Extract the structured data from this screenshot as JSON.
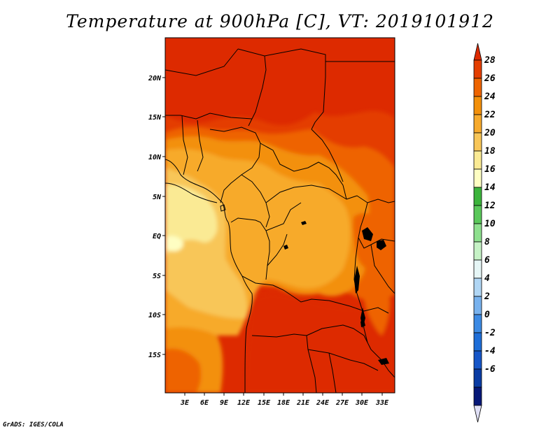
{
  "title": "Temperature at 900hPa [C], VT: 2019101912",
  "credit": "GrADS: IGES/COLA",
  "map": {
    "region": "Central Africa",
    "lon_labels": [
      "3E",
      "6E",
      "9E",
      "12E",
      "15E",
      "18E",
      "21E",
      "24E",
      "27E",
      "30E",
      "33E"
    ],
    "lat_labels": [
      "20N",
      "15N",
      "10N",
      "5N",
      "EQ",
      "5S",
      "10S",
      "15S"
    ]
  },
  "legend": {
    "labels": [
      "28",
      "26",
      "24",
      "22",
      "20",
      "18",
      "16",
      "14",
      "12",
      "10",
      "8",
      "6",
      "4",
      "2",
      "0",
      "-2",
      "-4",
      "-6"
    ],
    "colors": [
      "#dd2a00",
      "#e43e00",
      "#ee6400",
      "#f3900a",
      "#f7aa2c",
      "#f8c658",
      "#faea94",
      "#fefec2",
      "#3cb43c",
      "#5ac85a",
      "#8ee08e",
      "#c6f2c6",
      "#e6f6f6",
      "#b0d6f4",
      "#78b2ee",
      "#3c8ae4",
      "#1e6ed8",
      "#1656c8",
      "#0a3ca4",
      "#061878",
      "#e0e0f6"
    ]
  }
}
